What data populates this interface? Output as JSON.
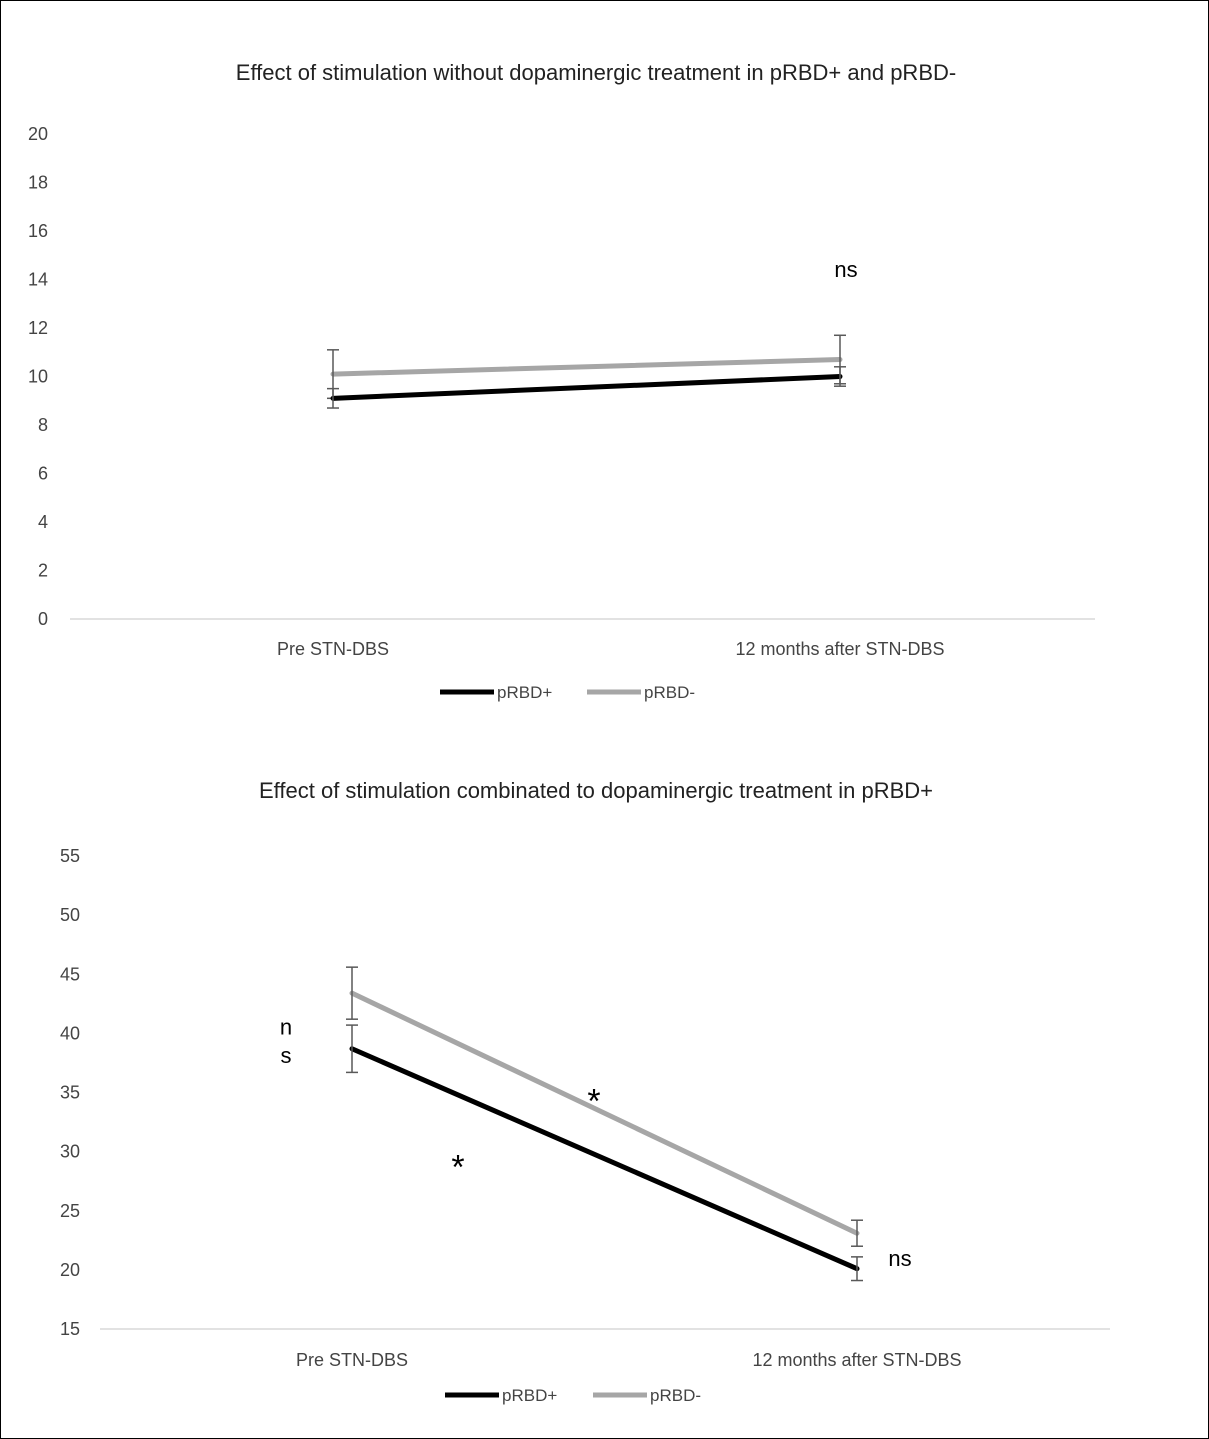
{
  "chart_data": [
    {
      "type": "line",
      "title": "Effect of stimulation without dopaminergic treatment in pRBD+ and pRBD-",
      "categories": [
        "Pre STN-DBS",
        "12 months after STN-DBS"
      ],
      "ylim": [
        0,
        20
      ],
      "yticks": [
        0,
        2,
        4,
        6,
        8,
        10,
        12,
        14,
        16,
        18,
        20
      ],
      "grid": false,
      "legend": "bottom",
      "colors": {
        "pRBD+": "#000000",
        "pRBD-": "#a6a6a6",
        "errorbar": "#595959"
      },
      "series": [
        {
          "name": "pRBD+",
          "values": [
            9.1,
            10.0
          ],
          "error": [
            0.4,
            0.4
          ]
        },
        {
          "name": "pRBD-",
          "values": [
            10.1,
            10.7
          ],
          "error": [
            1.0,
            1.0
          ]
        }
      ],
      "annotations": [
        {
          "text": "ns",
          "category": "12 months after STN-DBS",
          "y": 14.4
        }
      ]
    },
    {
      "type": "line",
      "title": "Effect of stimulation combinated to dopaminergic treatment in pRBD+",
      "categories": [
        "Pre STN-DBS",
        "12 months after STN-DBS"
      ],
      "ylim": [
        15,
        55
      ],
      "yticks": [
        15,
        20,
        25,
        30,
        35,
        40,
        45,
        50,
        55
      ],
      "grid": false,
      "legend": "bottom",
      "colors": {
        "pRBD+": "#000000",
        "pRBD-": "#a6a6a6",
        "errorbar": "#595959"
      },
      "series": [
        {
          "name": "pRBD+",
          "values": [
            38.7,
            20.1
          ],
          "error": [
            2.0,
            1.0
          ]
        },
        {
          "name": "pRBD-",
          "values": [
            43.4,
            23.1
          ],
          "error": [
            2.2,
            1.1
          ]
        }
      ],
      "annotations": [
        {
          "text": "n",
          "category": "Pre STN-DBS",
          "y": 40.5
        },
        {
          "text": "s",
          "category": "Pre STN-DBS",
          "y": 38.1
        },
        {
          "text": "*",
          "category": "mid-upper",
          "y": 34.5
        },
        {
          "text": "*",
          "category": "mid-lower",
          "y": 28.9
        },
        {
          "text": "ns",
          "category": "12 months after STN-DBS",
          "y": 20.9
        }
      ]
    }
  ]
}
